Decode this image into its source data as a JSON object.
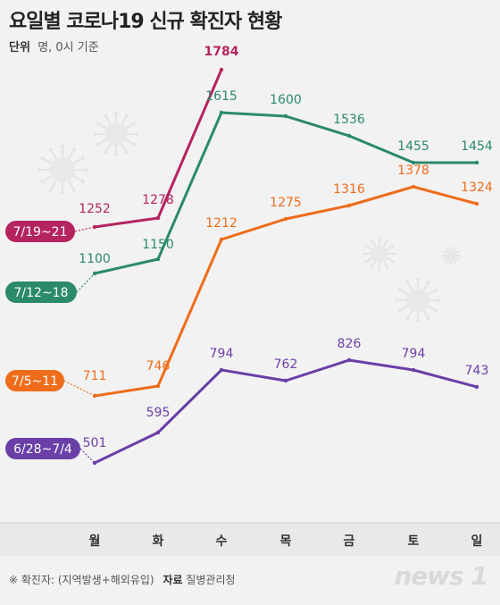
{
  "header": {
    "title": "요일별 코로나19 신규 확진자 현황",
    "unit_label": "단위",
    "unit_value": "명, 0시 기준"
  },
  "footer": {
    "note": "※ 확진자: (지역발생+해외유입)",
    "source_label": "자료",
    "source_value": "질병관리청"
  },
  "brand": "news 1",
  "chart_data": {
    "type": "line",
    "categories": [
      "월",
      "화",
      "수",
      "목",
      "금",
      "토",
      "일"
    ],
    "series": [
      {
        "name": "7/19~21",
        "color": "#b5245f",
        "values": [
          1252,
          1278,
          1784,
          null,
          null,
          null,
          null
        ]
      },
      {
        "name": "7/12~18",
        "color": "#2a8a6a",
        "values": [
          1100,
          1150,
          1615,
          1600,
          1536,
          1455,
          1454
        ]
      },
      {
        "name": "7/5~11",
        "color": "#ef6c1a",
        "values": [
          711,
          746,
          1212,
          1275,
          1316,
          1378,
          1324
        ]
      },
      {
        "name": "6/28~7/4",
        "color": "#6a3fa7",
        "values": [
          501,
          595,
          794,
          762,
          826,
          794,
          743
        ]
      }
    ],
    "grid": false,
    "legend": "left, at series start"
  }
}
